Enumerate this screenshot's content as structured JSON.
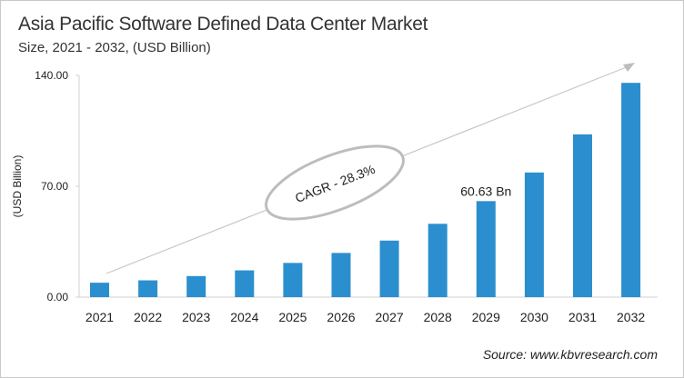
{
  "chart_data": {
    "type": "bar",
    "title": "Asia Pacific Software Defined Data Center Market",
    "subtitle": "Size, 2021 - 2032, (USD Billion)",
    "ylabel": "(USD Billion)",
    "xlabel": "",
    "categories": [
      "2021",
      "2022",
      "2023",
      "2024",
      "2025",
      "2026",
      "2027",
      "2028",
      "2029",
      "2030",
      "2031",
      "2032"
    ],
    "values": [
      9.1,
      10.6,
      13.3,
      16.9,
      21.6,
      27.9,
      35.7,
      46.3,
      60.63,
      78.7,
      102.8,
      135.3
    ],
    "ylim": [
      0,
      140
    ],
    "yticks": [
      "0.00",
      "70.00",
      "140.00"
    ],
    "ytick_values": [
      0,
      70,
      140
    ],
    "data_label": {
      "category": "2029",
      "text": "60.63 Bn"
    },
    "annotation": "CAGR - 28.3%",
    "grid": false,
    "bar_color": "#2b8fcf",
    "source": "Source: www.kbvresearch.com"
  }
}
